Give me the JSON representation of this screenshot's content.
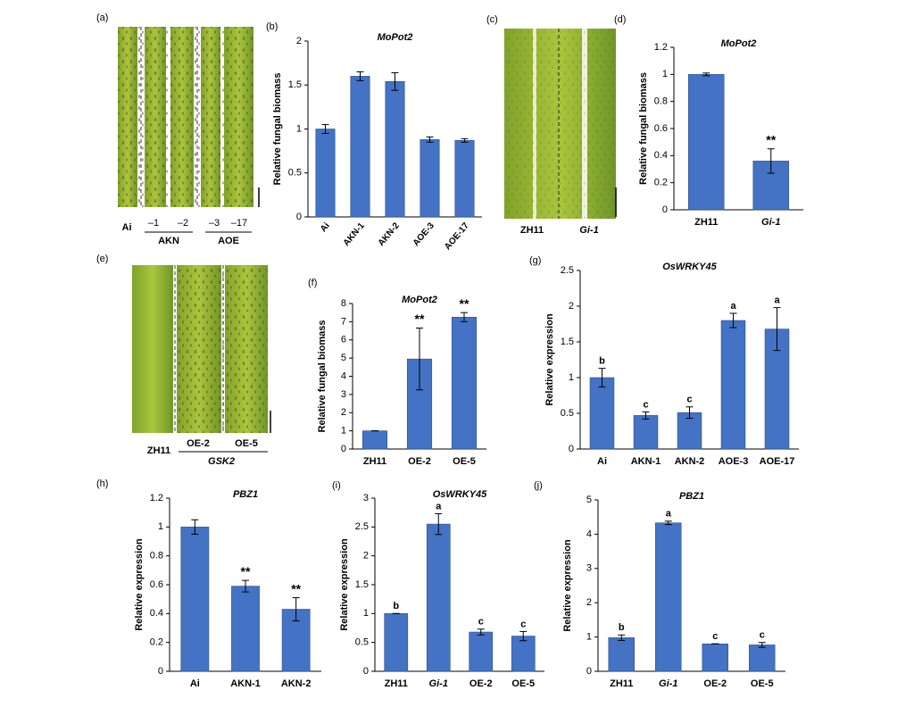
{
  "photo_panels": [
    {
      "label": "(a)",
      "lanes": [
        "Ai",
        "–1",
        "–2",
        "–3",
        "–17"
      ],
      "groups": [
        "AKN",
        "AOE"
      ]
    },
    {
      "label": "(c)",
      "lanes": [
        "ZH11",
        "Gi-1"
      ]
    },
    {
      "label": "(e)",
      "lanes": [
        "ZH11",
        "OE-2",
        "OE-5"
      ],
      "groups": [
        "GSK2"
      ]
    }
  ],
  "chart_data": [
    {
      "type": "bar",
      "panel": "(b)",
      "title": "MoPot2",
      "ylabel": "Relative fungal biomass",
      "color": "#4472c4",
      "categories": [
        "Ai",
        "AKN-1",
        "AKN-2",
        "AOE-3",
        "AOE-17"
      ],
      "italic": [
        false,
        false,
        false,
        false,
        false
      ],
      "xtick_rotation": -50,
      "values": [
        1.0,
        1.6,
        1.54,
        0.88,
        0.87
      ],
      "errors": [
        0.05,
        0.05,
        0.1,
        0.03,
        0.02
      ],
      "annotations": [
        null,
        null,
        null,
        null,
        null
      ],
      "ylim": [
        0,
        2
      ],
      "yticks": [
        0,
        0.5,
        1,
        1.5,
        2
      ]
    },
    {
      "type": "bar",
      "panel": "(d)",
      "title": "MoPot2",
      "ylabel": "Relative fungal biomass",
      "color": "#4472c4",
      "categories": [
        "ZH11",
        "Gi-1"
      ],
      "italic": [
        false,
        true
      ],
      "xtick_rotation": 0,
      "values": [
        1.0,
        0.36
      ],
      "errors": [
        0.01,
        0.09
      ],
      "annotations": [
        null,
        "**"
      ],
      "ylim": [
        0,
        1.2
      ],
      "yticks": [
        0,
        0.2,
        0.4,
        0.6,
        0.8,
        1,
        1.2
      ]
    },
    {
      "type": "bar",
      "panel": "(f)",
      "title": "MoPot2",
      "ylabel": "Relative fungal biomass",
      "color": "#4472c4",
      "categories": [
        "ZH11",
        "OE-2",
        "OE-5"
      ],
      "italic": [
        false,
        false,
        false
      ],
      "xtick_rotation": 0,
      "values": [
        1,
        4.95,
        7.25
      ],
      "errors": [
        0,
        1.7,
        0.25
      ],
      "annotations": [
        null,
        "**",
        "**"
      ],
      "ylim": [
        0,
        8
      ],
      "yticks": [
        0,
        1,
        2,
        3,
        4,
        5,
        6,
        7,
        8
      ]
    },
    {
      "type": "bar",
      "panel": "(g)",
      "title": "OsWRKY45",
      "ylabel": "Relative expression",
      "color": "#4472c4",
      "categories": [
        "Ai",
        "AKN-1",
        "AKN-2",
        "AOE-3",
        "AOE-17"
      ],
      "italic": [
        false,
        false,
        false,
        false,
        false
      ],
      "xtick_rotation": 0,
      "values": [
        1,
        0.47,
        0.51,
        1.8,
        1.68
      ],
      "errors": [
        0.13,
        0.05,
        0.08,
        0.1,
        0.3
      ],
      "annotations": [
        "b",
        "c",
        "c",
        "a",
        "a"
      ],
      "ylim": [
        0,
        2.5
      ],
      "yticks": [
        0,
        0.5,
        1,
        1.5,
        2,
        2.5
      ]
    },
    {
      "type": "bar",
      "panel": "(h)",
      "title": "PBZ1",
      "ylabel": "Relative expression",
      "color": "#4472c4",
      "categories": [
        "Ai",
        "AKN-1",
        "AKN-2"
      ],
      "italic": [
        false,
        false,
        false
      ],
      "xtick_rotation": 0,
      "values": [
        1,
        0.59,
        0.43
      ],
      "errors": [
        0.05,
        0.04,
        0.08
      ],
      "annotations": [
        null,
        "**",
        "**"
      ],
      "ylim": [
        0,
        1.2
      ],
      "yticks": [
        0,
        0.2,
        0.4,
        0.6,
        0.8,
        1,
        1.2
      ]
    },
    {
      "type": "bar",
      "panel": "(i)",
      "title": "OsWRKY45",
      "ylabel": "Relative expression",
      "color": "#4472c4",
      "categories": [
        "ZH11",
        "Gi-1",
        "OE-2",
        "OE-5"
      ],
      "italic": [
        false,
        true,
        false,
        false
      ],
      "xtick_rotation": 0,
      "values": [
        1,
        2.55,
        0.68,
        0.61
      ],
      "errors": [
        0,
        0.18,
        0.05,
        0.08
      ],
      "annotations": [
        "b",
        "a",
        "c",
        "c"
      ],
      "ylim": [
        0,
        3
      ],
      "yticks": [
        0,
        0.5,
        1,
        1.5,
        2,
        2.5,
        3
      ]
    },
    {
      "type": "bar",
      "panel": "(j)",
      "title": "PBZ1",
      "ylabel": "Relative expression",
      "color": "#4472c4",
      "categories": [
        "ZH11",
        "Gi-1",
        "OE-2",
        "OE-5"
      ],
      "italic": [
        false,
        true,
        false,
        false
      ],
      "xtick_rotation": 0,
      "values": [
        0.98,
        4.33,
        0.8,
        0.77
      ],
      "errors": [
        0.08,
        0.05,
        0,
        0.07
      ],
      "annotations": [
        "b",
        "a",
        "c",
        "c"
      ],
      "ylim": [
        0,
        5
      ],
      "yticks": [
        0,
        1,
        2,
        3,
        4,
        5
      ]
    }
  ]
}
